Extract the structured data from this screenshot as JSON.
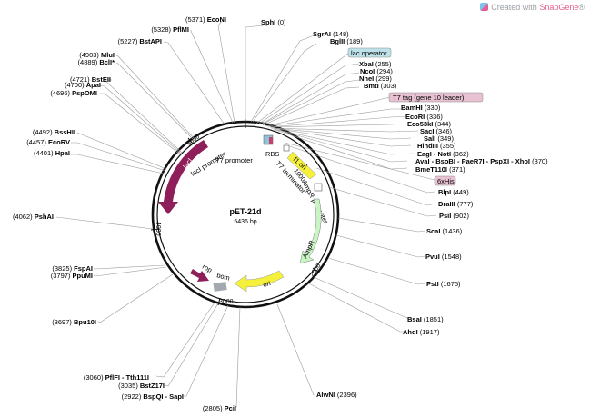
{
  "credit": {
    "prefix": "Created with ",
    "brand": "SnapGene",
    "suffix": "®"
  },
  "plasmid": {
    "name": "pET-21d",
    "length_label": "5436 bp"
  },
  "ticks": [
    "1000",
    "2000",
    "3000",
    "4000",
    "5000"
  ],
  "boxed_labels": {
    "lac_operator": "lac operator",
    "t7_tag": "T7 tag (gene 10 leader)",
    "six_his": "6xHis"
  },
  "features": {
    "laci": "lacI",
    "laci_promoter": "lacI promoter",
    "t7_promoter": "T7 promoter",
    "rbs": "RBS",
    "f1_ori": "f1 ori",
    "ampr_promoter": "AmpR promoter",
    "t7_terminator": "T7 terminator",
    "ampr": "AmpR",
    "ori": "ori",
    "rop": "rop",
    "bom": "bom"
  },
  "sites": [
    {
      "name": "SphI",
      "pos": "(0)"
    },
    {
      "name": "SgrAI",
      "pos": "(148)"
    },
    {
      "name": "BglII",
      "pos": "(189)"
    },
    {
      "name": "XbaI",
      "pos": "(255)"
    },
    {
      "name": "NcoI",
      "pos": "(294)"
    },
    {
      "name": "NheI",
      "pos": "(299)"
    },
    {
      "name": "BmtI",
      "pos": "(303)"
    },
    {
      "name": "BamHI",
      "pos": "(330)"
    },
    {
      "name": "EcoRI",
      "pos": "(336)"
    },
    {
      "name": "Eco53kI",
      "pos": "(344)"
    },
    {
      "name": "SacI",
      "pos": "(346)"
    },
    {
      "name": "SalI",
      "pos": "(349)"
    },
    {
      "name": "HindIII",
      "pos": "(355)"
    },
    {
      "name": "EagI - NotI",
      "pos": "(362)"
    },
    {
      "name": "AvaI - BsoBI - PaeR7I - PspXI - XhoI",
      "pos": "(370)"
    },
    {
      "name": "BmeT110I",
      "pos": "(371)"
    },
    {
      "name": "BlpI",
      "pos": "(449)"
    },
    {
      "name": "DraIII",
      "pos": "(777)"
    },
    {
      "name": "PsiI",
      "pos": "(902)"
    },
    {
      "name": "ScaI",
      "pos": "(1436)"
    },
    {
      "name": "PvuI",
      "pos": "(1548)"
    },
    {
      "name": "PstI",
      "pos": "(1675)"
    },
    {
      "name": "BsaI",
      "pos": "(1851)"
    },
    {
      "name": "AhdI",
      "pos": "(1917)"
    },
    {
      "name": "AlwNI",
      "pos": "(2396)"
    },
    {
      "name": "PciI",
      "pos": "(2805)"
    },
    {
      "name": "BspQI - SapI",
      "pos": "(2922)"
    },
    {
      "name": "BstZ17I",
      "pos": "(3035)"
    },
    {
      "name": "PflFI - Tth111I",
      "pos": "(3060)"
    },
    {
      "name": "Bpu10I",
      "pos": "(3697)"
    },
    {
      "name": "PpuMI",
      "pos": "(3797)"
    },
    {
      "name": "FspAI",
      "pos": "(3825)"
    },
    {
      "name": "PshAI",
      "pos": "(4062)"
    },
    {
      "name": "HpaI",
      "pos": "(4401)"
    },
    {
      "name": "EcoRV",
      "pos": "(4457)"
    },
    {
      "name": "BssHII",
      "pos": "(4492)"
    },
    {
      "name": "PspOMI",
      "pos": "(4696)"
    },
    {
      "name": "ApaI",
      "pos": "(4700)"
    },
    {
      "name": "BstEII",
      "pos": "(4721)"
    },
    {
      "name": "BclI*",
      "pos": "(4889)"
    },
    {
      "name": "MluI",
      "pos": "(4903)"
    },
    {
      "name": "BstAPI",
      "pos": "(5227)"
    },
    {
      "name": "PflMI",
      "pos": "(5328)"
    },
    {
      "name": "EcoNI",
      "pos": "(5371)"
    }
  ]
}
